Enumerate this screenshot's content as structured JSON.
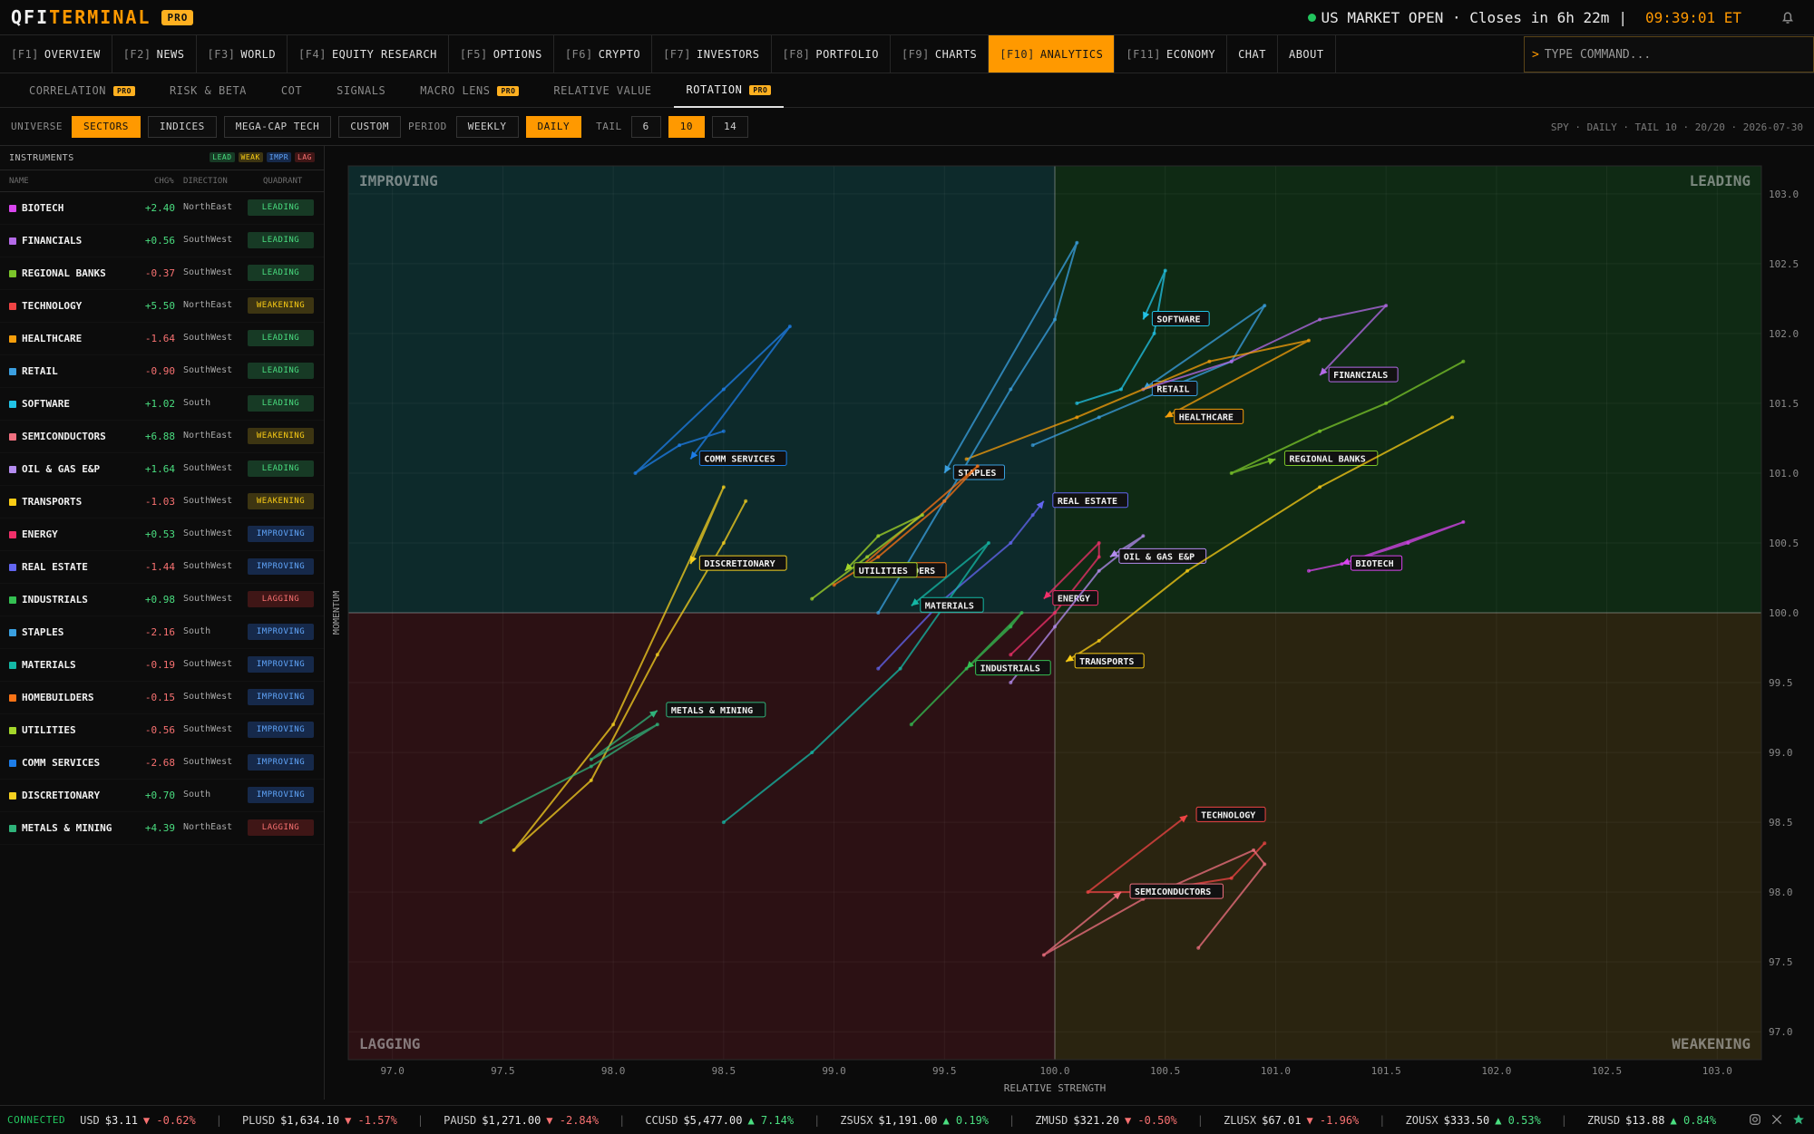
{
  "header": {
    "logo_part1": "QFI",
    "logo_part2": "TERMINAL",
    "pro": "PRO",
    "market_status": "US MARKET OPEN · Closes in 6h 22m",
    "sep": "|",
    "clock": "09:39:01 ET"
  },
  "nav": [
    {
      "key": "[F1]",
      "label": "OVERVIEW"
    },
    {
      "key": "[F2]",
      "label": "NEWS"
    },
    {
      "key": "[F3]",
      "label": "WORLD"
    },
    {
      "key": "[F4]",
      "label": "EQUITY RESEARCH"
    },
    {
      "key": "[F5]",
      "label": "OPTIONS"
    },
    {
      "key": "[F6]",
      "label": "CRYPTO"
    },
    {
      "key": "[F7]",
      "label": "INVESTORS"
    },
    {
      "key": "[F8]",
      "label": "PORTFOLIO"
    },
    {
      "key": "[F9]",
      "label": "CHARTS"
    },
    {
      "key": "[F10]",
      "label": "ANALYTICS"
    },
    {
      "key": "[F11]",
      "label": "ECONOMY"
    },
    {
      "key": "",
      "label": "CHAT"
    },
    {
      "key": "",
      "label": "ABOUT"
    }
  ],
  "command": {
    "caret": ">",
    "placeholder": "TYPE COMMAND..."
  },
  "subtabs": [
    {
      "label": "CORRELATION",
      "pro": "PRO"
    },
    {
      "label": "RISK & BETA",
      "pro": ""
    },
    {
      "label": "COT",
      "pro": ""
    },
    {
      "label": "SIGNALS",
      "pro": ""
    },
    {
      "label": "MACRO LENS",
      "pro": "PRO"
    },
    {
      "label": "RELATIVE VALUE",
      "pro": ""
    },
    {
      "label": "ROTATION",
      "pro": "PRO"
    }
  ],
  "controls": {
    "universe_label": "UNIVERSE",
    "universe": [
      "SECTORS",
      "INDICES",
      "MEGA-CAP TECH",
      "CUSTOM"
    ],
    "period_label": "PERIOD",
    "period": [
      "WEEKLY",
      "DAILY"
    ],
    "tail_label": "TAIL",
    "tail": [
      "6",
      "10",
      "14"
    ],
    "status": "SPY · DAILY · TAIL 10 · 20/20 · 2026-07-30"
  },
  "sidebar": {
    "title": "INSTRUMENTS",
    "tags": [
      "LEAD",
      "WEAK",
      "IMPR",
      "LAG"
    ],
    "cols": {
      "name": "NAME",
      "chg": "CHG%",
      "dir": "DIRECTION",
      "quad": "QUADRANT"
    },
    "rows": [
      {
        "name": "BIOTECH",
        "chg": "+2.40",
        "dir": "NorthEast",
        "quad": "LEADING",
        "color": "#d946ef"
      },
      {
        "name": "FINANCIALS",
        "chg": "+0.56",
        "dir": "SouthWest",
        "quad": "LEADING",
        "color": "#b46ae8"
      },
      {
        "name": "REGIONAL BANKS",
        "chg": "-0.37",
        "dir": "SouthWest",
        "quad": "LEADING",
        "color": "#7bc52a"
      },
      {
        "name": "TECHNOLOGY",
        "chg": "+5.50",
        "dir": "NorthEast",
        "quad": "WEAKENING",
        "color": "#ef4444"
      },
      {
        "name": "HEALTHCARE",
        "chg": "-1.64",
        "dir": "SouthWest",
        "quad": "LEADING",
        "color": "#f59e0b"
      },
      {
        "name": "RETAIL",
        "chg": "-0.90",
        "dir": "SouthWest",
        "quad": "LEADING",
        "color": "#3b9fe0"
      },
      {
        "name": "SOFTWARE",
        "chg": "+1.02",
        "dir": "South",
        "quad": "LEADING",
        "color": "#22c3e6"
      },
      {
        "name": "SEMICONDUCTORS",
        "chg": "+6.88",
        "dir": "NorthEast",
        "quad": "WEAKENING",
        "color": "#f07080"
      },
      {
        "name": "OIL & GAS E&P",
        "chg": "+1.64",
        "dir": "SouthWest",
        "quad": "LEADING",
        "color": "#b48cf0"
      },
      {
        "name": "TRANSPORTS",
        "chg": "-1.03",
        "dir": "SouthWest",
        "quad": "WEAKENING",
        "color": "#facc15"
      },
      {
        "name": "ENERGY",
        "chg": "+0.53",
        "dir": "SouthWest",
        "quad": "IMPROVING",
        "color": "#f0306a"
      },
      {
        "name": "REAL ESTATE",
        "chg": "-1.44",
        "dir": "SouthWest",
        "quad": "IMPROVING",
        "color": "#6366f1"
      },
      {
        "name": "INDUSTRIALS",
        "chg": "+0.98",
        "dir": "SouthWest",
        "quad": "LAGGING",
        "color": "#34c052"
      },
      {
        "name": "STAPLES",
        "chg": "-2.16",
        "dir": "South",
        "quad": "IMPROVING",
        "color": "#3aa0e0"
      },
      {
        "name": "MATERIALS",
        "chg": "-0.19",
        "dir": "SouthWest",
        "quad": "IMPROVING",
        "color": "#14b8a6"
      },
      {
        "name": "HOMEBUILDERS",
        "chg": "-0.15",
        "dir": "SouthWest",
        "quad": "IMPROVING",
        "color": "#f97316"
      },
      {
        "name": "UTILITIES",
        "chg": "-0.56",
        "dir": "SouthWest",
        "quad": "IMPROVING",
        "color": "#a3d62a"
      },
      {
        "name": "COMM SERVICES",
        "chg": "-2.68",
        "dir": "SouthWest",
        "quad": "IMPROVING",
        "color": "#1d7de8"
      },
      {
        "name": "DISCRETIONARY",
        "chg": "+0.70",
        "dir": "South",
        "quad": "IMPROVING",
        "color": "#f5d020"
      },
      {
        "name": "METALS & MINING",
        "chg": "+4.39",
        "dir": "NorthEast",
        "quad": "LAGGING",
        "color": "#2fb37a"
      }
    ]
  },
  "chart_data": {
    "type": "scatter",
    "subtype": "relative-rotation-graph",
    "xlabel": "RELATIVE STRENGTH",
    "ylabel": "MOMENTUM",
    "xlim": [
      96.8,
      103.2
    ],
    "ylim": [
      96.8,
      103.2
    ],
    "x_ticks": [
      "97.0",
      "97.5",
      "98.0",
      "98.5",
      "99.0",
      "99.5",
      "100.0",
      "100.5",
      "101.0",
      "101.5",
      "102.0",
      "102.5",
      "103.0"
    ],
    "y_ticks": [
      "103.0",
      "102.5",
      "102.0",
      "101.5",
      "101.0",
      "100.5",
      "100.0",
      "99.5",
      "99.0",
      "98.5",
      "98.0",
      "97.5",
      "97.0"
    ],
    "quadrants": {
      "improving": "IMPROVING",
      "leading": "LEADING",
      "lagging": "LAGGING",
      "weakening": "WEAKENING"
    },
    "series": [
      {
        "name": "SOFTWARE",
        "color": "#22c3e6",
        "points": [
          [
            100.1,
            101.5
          ],
          [
            100.3,
            101.6
          ],
          [
            100.45,
            102.0
          ],
          [
            100.5,
            102.45
          ],
          [
            100.4,
            102.1
          ]
        ]
      },
      {
        "name": "RETAIL",
        "color": "#3b9fe0",
        "points": [
          [
            99.9,
            101.2
          ],
          [
            100.2,
            101.4
          ],
          [
            100.8,
            101.8
          ],
          [
            100.95,
            102.2
          ],
          [
            100.4,
            101.6
          ]
        ]
      },
      {
        "name": "FINANCIALS",
        "color": "#b46ae8",
        "points": [
          [
            100.4,
            101.6
          ],
          [
            100.8,
            101.8
          ],
          [
            101.2,
            102.1
          ],
          [
            101.5,
            102.2
          ],
          [
            101.2,
            101.7
          ]
        ]
      },
      {
        "name": "HEALTHCARE",
        "color": "#f59e0b",
        "points": [
          [
            99.6,
            101.1
          ],
          [
            100.1,
            101.4
          ],
          [
            100.7,
            101.8
          ],
          [
            101.15,
            101.95
          ],
          [
            100.5,
            101.4
          ]
        ]
      },
      {
        "name": "REGIONAL BANKS",
        "color": "#7bc52a",
        "points": [
          [
            101.85,
            101.8
          ],
          [
            101.5,
            101.5
          ],
          [
            101.2,
            101.3
          ],
          [
            100.8,
            101.0
          ],
          [
            101.0,
            101.1
          ]
        ]
      },
      {
        "name": "BIOTECH",
        "color": "#d946ef",
        "points": [
          [
            101.15,
            100.3
          ],
          [
            101.3,
            100.35
          ],
          [
            101.6,
            100.5
          ],
          [
            101.85,
            100.65
          ],
          [
            101.3,
            100.35
          ]
        ]
      },
      {
        "name": "COMM SERVICES",
        "color": "#1d7de8",
        "points": [
          [
            98.5,
            101.3
          ],
          [
            98.3,
            101.2
          ],
          [
            98.1,
            101.0
          ],
          [
            98.5,
            101.6
          ],
          [
            98.8,
            102.05
          ],
          [
            98.35,
            101.1
          ]
        ]
      },
      {
        "name": "DISCRETIONARY",
        "color": "#f5d020",
        "points": [
          [
            98.6,
            100.8
          ],
          [
            98.5,
            100.5
          ],
          [
            98.2,
            99.7
          ],
          [
            97.9,
            98.8
          ],
          [
            97.55,
            98.3
          ],
          [
            98.0,
            99.2
          ],
          [
            98.5,
            100.9
          ],
          [
            98.35,
            100.35
          ]
        ]
      },
      {
        "name": "STAPLES",
        "color": "#3aa0e0",
        "points": [
          [
            99.2,
            100.0
          ],
          [
            99.5,
            100.8
          ],
          [
            99.8,
            101.6
          ],
          [
            100.0,
            102.1
          ],
          [
            100.1,
            102.65
          ],
          [
            99.5,
            101.0
          ]
        ]
      },
      {
        "name": "REAL ESTATE",
        "color": "#6366f1",
        "points": [
          [
            99.2,
            99.6
          ],
          [
            99.5,
            100.1
          ],
          [
            99.8,
            100.5
          ],
          [
            99.9,
            100.7
          ],
          [
            99.95,
            100.8
          ]
        ]
      },
      {
        "name": "HOMEBUILDERS",
        "color": "#f97316",
        "points": [
          [
            99.0,
            100.2
          ],
          [
            99.2,
            100.4
          ],
          [
            99.5,
            100.8
          ],
          [
            99.65,
            101.05
          ],
          [
            99.1,
            100.3
          ]
        ]
      },
      {
        "name": "UTILITIES",
        "color": "#a3d62a",
        "points": [
          [
            98.9,
            100.1
          ],
          [
            99.15,
            100.4
          ],
          [
            99.4,
            100.7
          ],
          [
            99.2,
            100.55
          ],
          [
            99.05,
            100.3
          ]
        ]
      },
      {
        "name": "MATERIALS",
        "color": "#14b8a6",
        "points": [
          [
            98.5,
            98.5
          ],
          [
            98.9,
            99.0
          ],
          [
            99.3,
            99.6
          ],
          [
            99.7,
            100.5
          ],
          [
            99.35,
            100.05
          ]
        ]
      },
      {
        "name": "ENERGY",
        "color": "#f0306a",
        "points": [
          [
            99.8,
            99.7
          ],
          [
            100.0,
            100.0
          ],
          [
            100.2,
            100.4
          ],
          [
            100.2,
            100.5
          ],
          [
            99.95,
            100.1
          ]
        ]
      },
      {
        "name": "OIL & GAS E&P",
        "color": "#b48cf0",
        "points": [
          [
            99.8,
            99.5
          ],
          [
            100.0,
            99.9
          ],
          [
            100.2,
            100.3
          ],
          [
            100.4,
            100.55
          ],
          [
            100.25,
            100.4
          ]
        ]
      },
      {
        "name": "INDUSTRIALS",
        "color": "#34c052",
        "points": [
          [
            99.35,
            99.2
          ],
          [
            99.6,
            99.6
          ],
          [
            99.8,
            99.9
          ],
          [
            99.85,
            100.0
          ],
          [
            99.6,
            99.6
          ]
        ]
      },
      {
        "name": "TRANSPORTS",
        "color": "#facc15",
        "points": [
          [
            101.8,
            101.4
          ],
          [
            101.2,
            100.9
          ],
          [
            100.6,
            100.3
          ],
          [
            100.2,
            99.8
          ],
          [
            100.05,
            99.65
          ]
        ]
      },
      {
        "name": "METALS & MINING",
        "color": "#2fb37a",
        "points": [
          [
            97.4,
            98.5
          ],
          [
            97.9,
            98.9
          ],
          [
            98.2,
            99.2
          ],
          [
            97.9,
            98.95
          ],
          [
            98.2,
            99.3
          ]
        ]
      },
      {
        "name": "TECHNOLOGY",
        "color": "#ef4444",
        "points": [
          [
            100.95,
            98.35
          ],
          [
            100.8,
            98.1
          ],
          [
            100.4,
            98.0
          ],
          [
            100.15,
            98.0
          ],
          [
            100.6,
            98.55
          ]
        ]
      },
      {
        "name": "SEMICONDUCTORS",
        "color": "#f07080",
        "points": [
          [
            100.65,
            97.6
          ],
          [
            100.95,
            98.2
          ],
          [
            100.9,
            98.3
          ],
          [
            100.4,
            97.95
          ],
          [
            99.95,
            97.55
          ],
          [
            100.3,
            98.0
          ]
        ]
      }
    ]
  },
  "footer": {
    "connected": "CONNECTED",
    "ticker": [
      {
        "sym": "USD",
        "price": "$3.11",
        "chg": "▼ -0.62%",
        "dir": "down"
      },
      {
        "sym": "PLUSD",
        "price": "$1,634.10",
        "chg": "▼ -1.57%",
        "dir": "down"
      },
      {
        "sym": "PAUSD",
        "price": "$1,271.00",
        "chg": "▼ -2.84%",
        "dir": "down"
      },
      {
        "sym": "CCUSD",
        "price": "$5,477.00",
        "chg": "▲ 7.14%",
        "dir": "up"
      },
      {
        "sym": "ZSUSX",
        "price": "$1,191.00",
        "chg": "▲ 0.19%",
        "dir": "up"
      },
      {
        "sym": "ZMUSD",
        "price": "$321.20",
        "chg": "▼ -0.50%",
        "dir": "down"
      },
      {
        "sym": "ZLUSX",
        "price": "$67.01",
        "chg": "▼ -1.96%",
        "dir": "down"
      },
      {
        "sym": "ZOUSX",
        "price": "$333.50",
        "chg": "▲ 0.53%",
        "dir": "up"
      },
      {
        "sym": "ZRUSD",
        "price": "$13.88",
        "chg": "▲ 0.84%",
        "dir": "up"
      }
    ]
  }
}
